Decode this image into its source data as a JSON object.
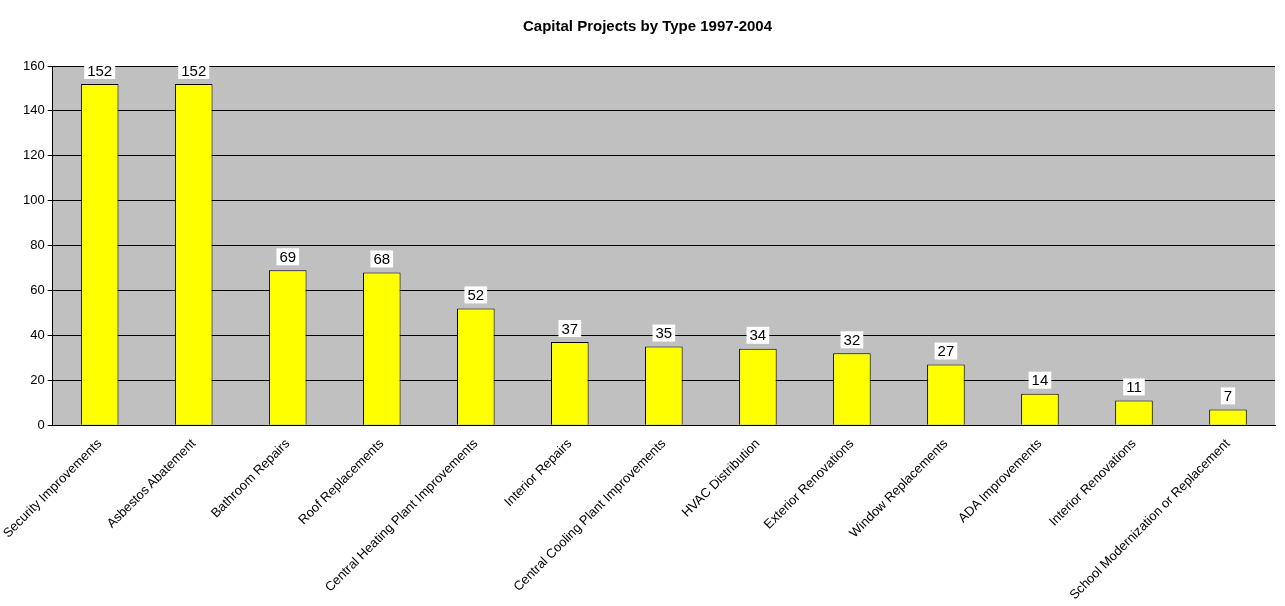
{
  "chart_data": {
    "type": "bar",
    "title": "Capital Projects by Type 1997-2004",
    "categories": [
      "Security Improvements",
      "Asbestos Abatement",
      "Bathroom Repairs",
      "Roof Replacements",
      "Central Heating Plant Improvements",
      "Interior Repairs",
      "Central Cooling Plant Improvements",
      "HVAC Distribution",
      "Exterior Renovations",
      "Window Replacements",
      "ADA Improvements",
      "Interior Renovations",
      "School Modernization or Replacement"
    ],
    "values": [
      152,
      152,
      69,
      68,
      52,
      37,
      35,
      34,
      32,
      27,
      14,
      11,
      7
    ],
    "color": "#ffff00",
    "ylim": [
      0,
      160
    ],
    "yticks": [
      0,
      20,
      40,
      60,
      80,
      100,
      120,
      140,
      160
    ],
    "grid": "y",
    "legend": false,
    "data_labels": true
  }
}
